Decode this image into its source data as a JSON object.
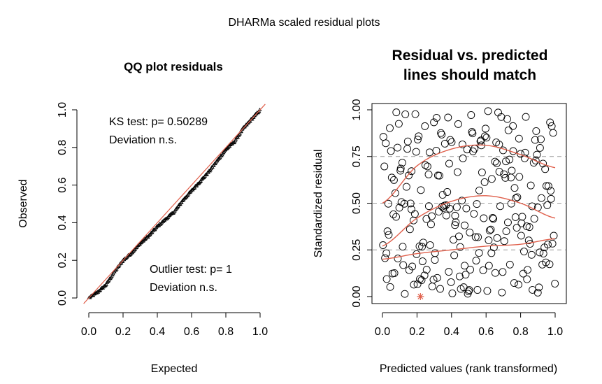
{
  "figure": {
    "title": "DHARMa scaled residual plots"
  },
  "chart_data": [
    {
      "type": "scatter",
      "title": "QQ plot residuals",
      "xlabel": "Expected",
      "ylabel": "Observed",
      "xlim": [
        0,
        1
      ],
      "ylim": [
        0,
        1
      ],
      "xticks": [
        "0.0",
        "0.2",
        "0.4",
        "0.6",
        "0.8",
        "1.0"
      ],
      "yticks": [
        "0.0",
        "0.2",
        "0.4",
        "0.6",
        "0.8",
        "1.0"
      ],
      "annotations": [
        {
          "lines": [
            "KS test: p= 0.50289",
            "Deviation  n.s."
          ],
          "position": "top-left"
        },
        {
          "lines": [
            "Outlier test: p= 1",
            "Deviation  n.s."
          ],
          "position": "bottom-right"
        }
      ],
      "reference_line": {
        "from": [
          0,
          0
        ],
        "to": [
          1,
          1
        ],
        "color": "#e0604c"
      },
      "qq_curve": {
        "expected": [
          0.0,
          0.05,
          0.1,
          0.15,
          0.2,
          0.25,
          0.3,
          0.35,
          0.4,
          0.45,
          0.5,
          0.55,
          0.6,
          0.65,
          0.7,
          0.75,
          0.8,
          0.85,
          0.9,
          0.95,
          1.0
        ],
        "observed": [
          0.0,
          0.03,
          0.07,
          0.14,
          0.2,
          0.24,
          0.29,
          0.33,
          0.38,
          0.42,
          0.46,
          0.52,
          0.57,
          0.62,
          0.67,
          0.73,
          0.79,
          0.83,
          0.9,
          0.95,
          1.0
        ]
      },
      "n_points": 250,
      "marker_color": "#000000"
    },
    {
      "type": "scatter",
      "title": "Residual vs. predicted\nlines should match",
      "title_lines": [
        "Residual vs. predicted",
        "lines should match"
      ],
      "xlabel": "Predicted values (rank transformed)",
      "ylabel": "Standardized residual",
      "xlim": [
        0,
        1
      ],
      "ylim": [
        0,
        1
      ],
      "xticks": [
        "0.0",
        "0.2",
        "0.4",
        "0.6",
        "0.8",
        "1.0"
      ],
      "yticks": [
        "0.00",
        "0.25",
        "0.50",
        "0.75",
        "1.00"
      ],
      "reference_hlines": [
        0.25,
        0.5,
        0.75
      ],
      "quantile_curves": [
        {
          "quantile": 0.25,
          "x": [
            0,
            0.2,
            0.4,
            0.6,
            0.8,
            1.0
          ],
          "y": [
            0.2,
            0.23,
            0.25,
            0.27,
            0.28,
            0.31
          ]
        },
        {
          "quantile": 0.5,
          "x": [
            0,
            0.2,
            0.4,
            0.6,
            0.8,
            1.0
          ],
          "y": [
            0.27,
            0.42,
            0.51,
            0.54,
            0.5,
            0.42
          ]
        },
        {
          "quantile": 0.75,
          "x": [
            0,
            0.2,
            0.4,
            0.6,
            0.8,
            1.0
          ],
          "y": [
            0.5,
            0.7,
            0.79,
            0.81,
            0.76,
            0.69
          ]
        }
      ],
      "outlier_points": [
        {
          "x": 0.22,
          "y": 0.0
        }
      ],
      "outlier_color": "#e0604c",
      "line_color": "#e0604c",
      "n_points": 250,
      "marker": "open-circle"
    }
  ]
}
